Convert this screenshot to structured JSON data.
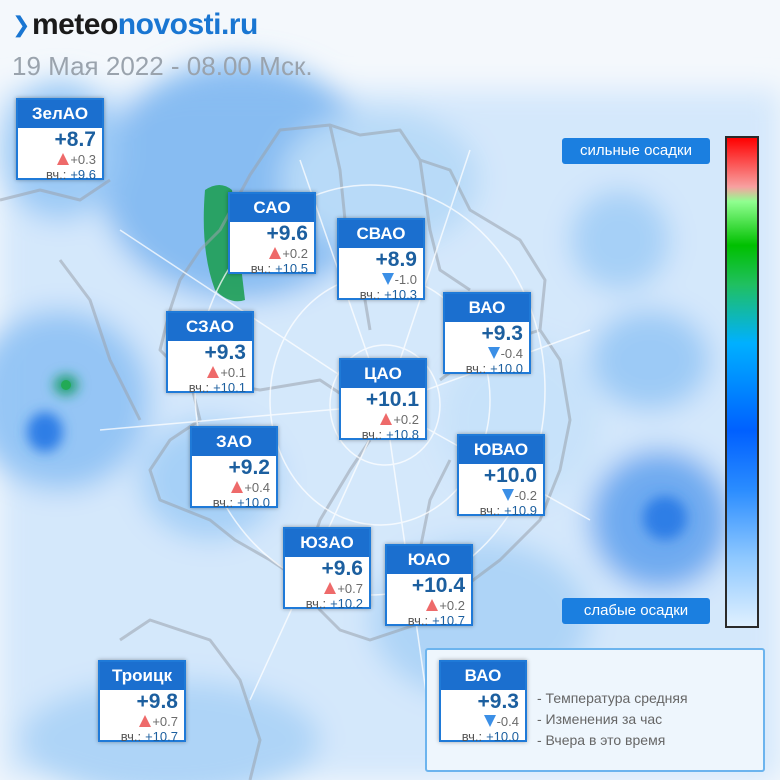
{
  "header": {
    "brand_left": "meteo",
    "brand_right": "novosti.ru",
    "date": "19 Мая 2022 - 08.00 Мск."
  },
  "colors": {
    "header_blue": "#1b6fcf",
    "temp_text": "#1c5f9f",
    "rise_arrow": "#ee6a6a",
    "fall_arrow": "#3b8fe6"
  },
  "districts": [
    {
      "name": "ЗелАО",
      "temp": "+8.7",
      "trend": "up",
      "change": "+0.3",
      "yesterday_label": "вч.:",
      "yesterday": "+9.6"
    },
    {
      "name": "САО",
      "temp": "+9.6",
      "trend": "up",
      "change": "+0.2",
      "yesterday_label": "вч.:",
      "yesterday": "+10.5"
    },
    {
      "name": "СВАО",
      "temp": "+8.9",
      "trend": "down",
      "change": "-1.0",
      "yesterday_label": "вч.:",
      "yesterday": "+10.3"
    },
    {
      "name": "ВАО",
      "temp": "+9.3",
      "trend": "down",
      "change": "-0.4",
      "yesterday_label": "вч.:",
      "yesterday": "+10.0"
    },
    {
      "name": "СЗАО",
      "temp": "+9.3",
      "trend": "up",
      "change": "+0.1",
      "yesterday_label": "вч.:",
      "yesterday": "+10.1"
    },
    {
      "name": "ЦАО",
      "temp": "+10.1",
      "trend": "up",
      "change": "+0.2",
      "yesterday_label": "вч.:",
      "yesterday": "+10.8"
    },
    {
      "name": "ЗАО",
      "temp": "+9.2",
      "trend": "up",
      "change": "+0.4",
      "yesterday_label": "вч.:",
      "yesterday": "+10.0"
    },
    {
      "name": "ЮВАО",
      "temp": "+10.0",
      "trend": "down",
      "change": "-0.2",
      "yesterday_label": "вч.:",
      "yesterday": "+10.9"
    },
    {
      "name": "ЮЗАО",
      "temp": "+9.6",
      "trend": "up",
      "change": "+0.7",
      "yesterday_label": "вч.:",
      "yesterday": "+10.2"
    },
    {
      "name": "ЮАО",
      "temp": "+10.4",
      "trend": "up",
      "change": "+0.2",
      "yesterday_label": "вч.:",
      "yesterday": "+10.7"
    },
    {
      "name": "Троицк",
      "temp": "+9.8",
      "trend": "up",
      "change": "+0.7",
      "yesterday_label": "вч.:",
      "yesterday": "+10.7"
    }
  ],
  "scale": {
    "top_label": "сильные осадки",
    "bottom_label": "слабые осадки"
  },
  "legend": {
    "sample": {
      "name": "ВАО",
      "temp": "+9.3",
      "trend": "down",
      "change": "-0.4",
      "yesterday_label": "вч.:",
      "yesterday": "+10.0"
    },
    "items": [
      "- Температура средняя",
      "- Изменения за час",
      "- Вчера в это время"
    ]
  }
}
